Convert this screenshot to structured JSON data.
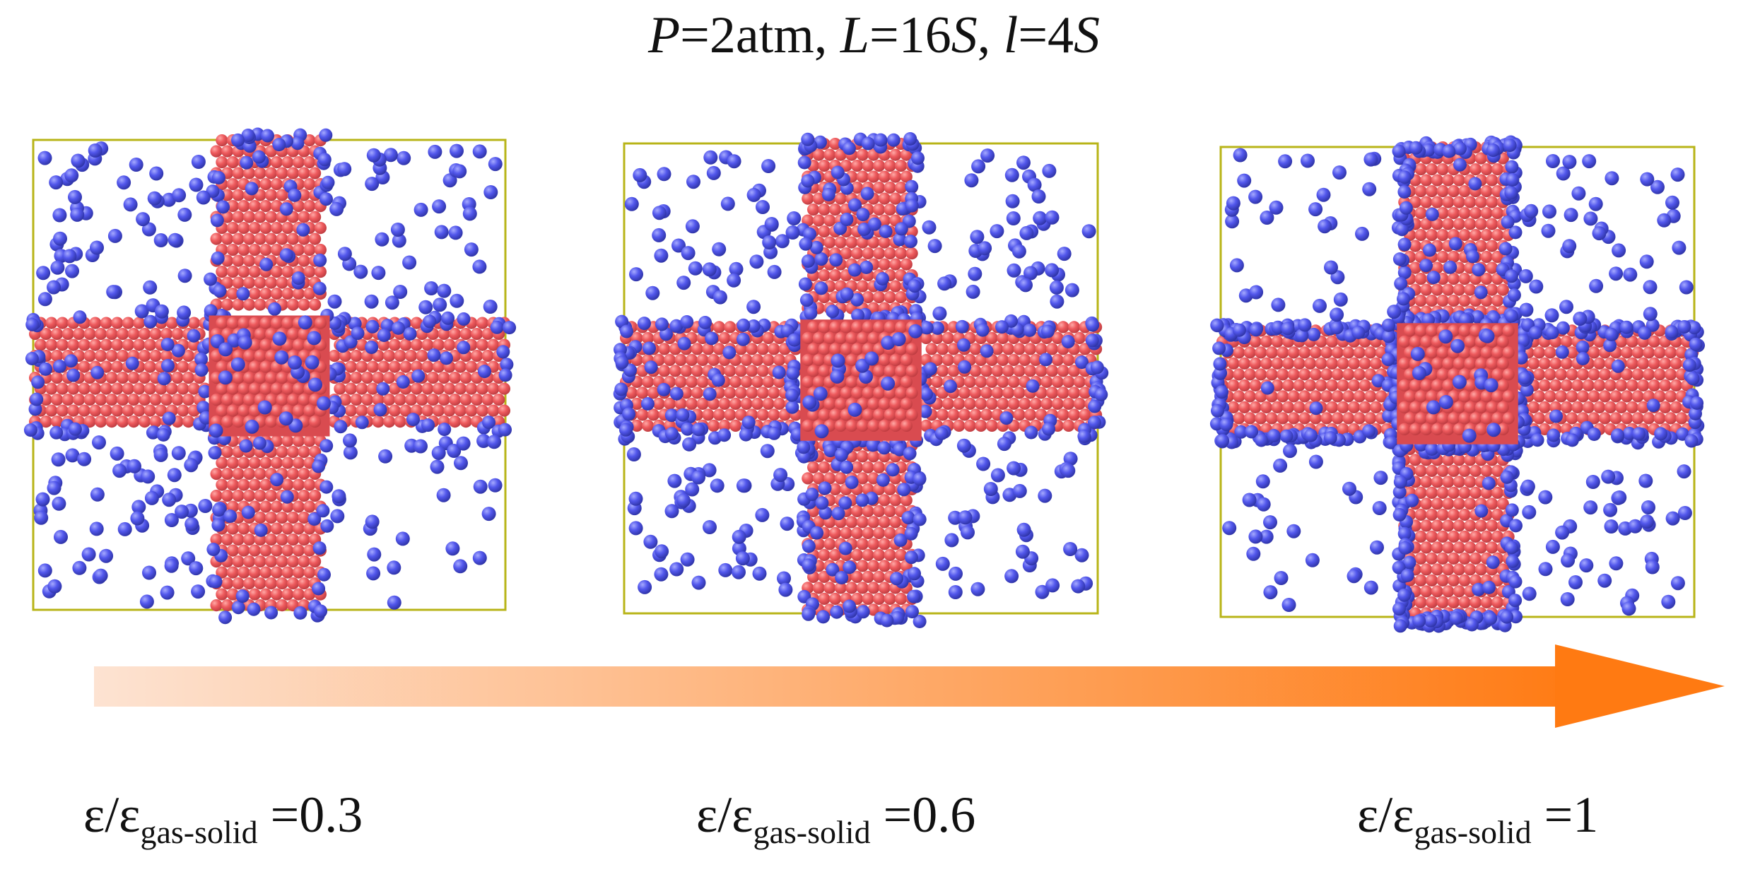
{
  "title": {
    "P_sym": "P",
    "P_val": "=2atm, ",
    "L_sym": "L",
    "L_val": "=16",
    "S1": "S",
    "sep": ", ",
    "l_sym": "l",
    "l_val": "=4",
    "S2": "S"
  },
  "panels": [
    {
      "eps": "ε/ε",
      "sub": "gas-solid",
      "value": " =0.3",
      "ratio": 0.3
    },
    {
      "eps": "ε/ε",
      "sub": "gas-solid",
      "value": " =0.6",
      "ratio": 0.6
    },
    {
      "eps": "ε/ε",
      "sub": "gas-solid",
      "value": " =1",
      "ratio": 1.0
    }
  ],
  "colors": {
    "solid": "#e9555a",
    "gas": "#4f55e8",
    "box": "#b8b418",
    "arrow_start": "#fde3d2",
    "arrow_end": "#ff7a12"
  }
}
